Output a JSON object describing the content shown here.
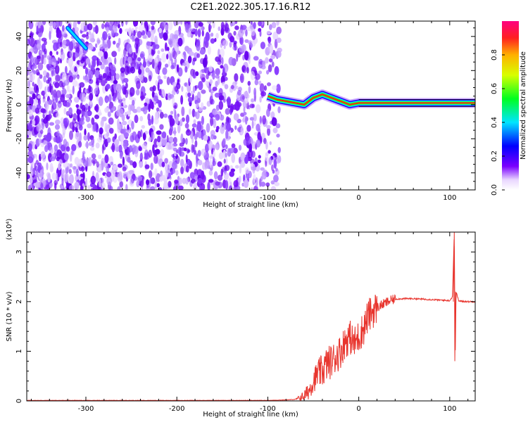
{
  "title": "C2E1.2022.305.17.16.R12",
  "colors": {
    "snr_line": "#e8342d",
    "signal_band": "#ff2010",
    "noise_violet": "#6a00f0"
  },
  "chart_data": [
    {
      "type": "heatmap",
      "xlabel": "Height of straight line (km)",
      "ylabel": "Frequency (Hz)",
      "xlim": [
        -365,
        128
      ],
      "ylim": [
        -50,
        49
      ],
      "xticks": [
        -300,
        -200,
        -100,
        0,
        100
      ],
      "yticks": [
        -40,
        -20,
        0,
        20,
        40
      ],
      "colorbar": {
        "label": "Normalized spectral amplitude",
        "range": [
          0,
          1
        ],
        "ticks": [
          0.0,
          0.2,
          0.4,
          0.6,
          0.8
        ],
        "colormap": "rainbow"
      },
      "noise_region_x": [
        -365,
        -87
      ],
      "signal_track": {
        "x": [
          -100,
          -90,
          -80,
          -70,
          -60,
          -50,
          -40,
          -30,
          -20,
          -10,
          0,
          20,
          50,
          80,
          100,
          128
        ],
        "frequency": [
          5,
          3,
          2,
          1,
          0,
          4,
          6,
          4,
          2,
          0,
          1,
          1,
          1,
          1,
          1,
          1
        ]
      },
      "streak": {
        "x": [
          -320,
          -300
        ],
        "frequency": [
          45,
          33
        ]
      }
    },
    {
      "type": "line",
      "xlabel": "Height of straight line (km)",
      "ylabel": "SNR (10 * v/v)",
      "y_multiplier": "(x10⁴)",
      "xlim": [
        -365,
        128
      ],
      "ylim": [
        0,
        3.4
      ],
      "xticks": [
        -300,
        -200,
        -100,
        0,
        100
      ],
      "yticks": [
        0,
        1,
        2,
        3
      ],
      "series": [
        {
          "x": [
            -365,
            -300,
            -200,
            -100,
            -80,
            -70,
            -60,
            -55,
            -50,
            -45,
            -40,
            -35,
            -30,
            -25,
            -20,
            -15,
            -10,
            -5,
            0,
            5,
            8,
            10,
            15,
            20,
            25,
            30,
            35,
            40,
            50,
            60,
            70,
            80,
            90,
            100,
            103,
            105,
            106,
            107,
            110,
            120,
            128
          ],
          "y": [
            0.01,
            0.01,
            0.01,
            0.01,
            0.02,
            0.03,
            0.1,
            0.2,
            0.4,
            0.55,
            0.6,
            0.75,
            0.8,
            0.9,
            1.0,
            1.2,
            1.3,
            1.15,
            1.3,
            1.45,
            1.6,
            1.7,
            1.8,
            1.88,
            1.93,
            1.98,
            2.02,
            2.05,
            2.06,
            2.06,
            2.05,
            2.04,
            2.03,
            2.02,
            2.1,
            3.4,
            0.8,
            2.2,
            2.01,
            2.0,
            2.0
          ]
        }
      ]
    }
  ]
}
